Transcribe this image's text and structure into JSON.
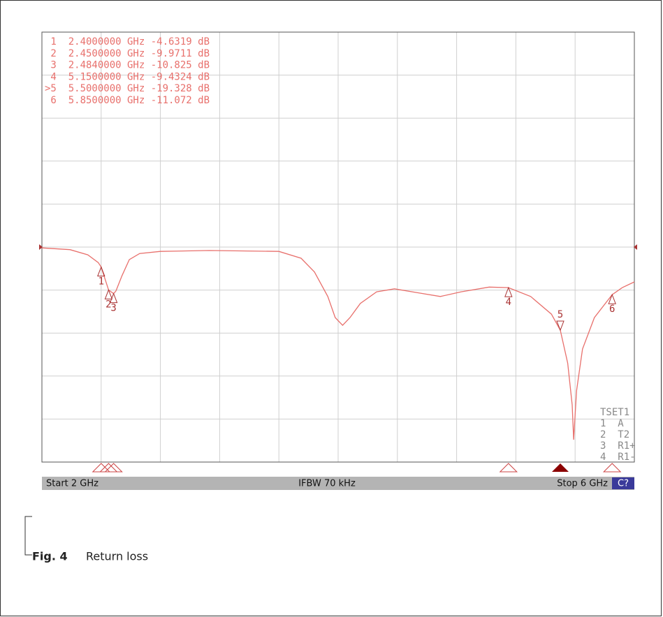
{
  "chart_data": {
    "type": "line",
    "x": [
      2.0,
      2.19,
      2.31,
      2.38,
      2.4,
      2.45,
      2.484,
      2.5,
      2.54,
      2.59,
      2.66,
      2.8,
      3.13,
      3.6,
      3.75,
      3.84,
      3.93,
      3.98,
      4.03,
      4.08,
      4.15,
      4.26,
      4.38,
      4.55,
      4.69,
      4.83,
      5.02,
      5.15,
      5.3,
      5.44,
      5.5,
      5.55,
      5.58,
      5.59,
      5.61,
      5.65,
      5.73,
      5.85,
      5.92,
      6.0
    ],
    "series": [
      {
        "color": "#e8706c",
        "values": [
          -0.2,
          -0.6,
          -1.8,
          -3.6,
          -4.6319,
          -9.9711,
          -10.825,
          -10.2,
          -6.7,
          -2.9,
          -1.5,
          -1.0,
          -0.8,
          -1.0,
          -2.6,
          -5.8,
          -11.5,
          -16.4,
          -18.2,
          -16.4,
          -13.1,
          -10.4,
          -9.7,
          -10.7,
          -11.5,
          -10.4,
          -9.3,
          -9.4324,
          -11.5,
          -15.6,
          -19.328,
          -27.0,
          -36.7,
          -44.8,
          -33.4,
          -23.7,
          -16.4,
          -11.072,
          -9.4,
          -8.1
        ]
      }
    ],
    "xlim": [
      2,
      6
    ],
    "ylim": [
      -50,
      50
    ],
    "xticks": [
      2,
      2.4,
      2.8,
      3.2,
      3.6,
      4,
      4.4,
      4.8,
      5.2,
      5.6,
      6
    ],
    "yticks": [
      -50,
      -40,
      -30,
      -20,
      -10,
      0,
      10,
      20,
      30,
      40,
      50
    ],
    "grid": true,
    "reference_value": 0,
    "markers": [
      {
        "label": "1",
        "x": 2.4,
        "value": -4.6319,
        "readout": " 1  2.4000000 GHz -4.6319 dB"
      },
      {
        "label": "2",
        "x": 2.45,
        "value": -9.9711,
        "readout": " 2  2.4500000 GHz -9.9711 dB"
      },
      {
        "label": "3",
        "x": 2.484,
        "value": -10.825,
        "readout": " 3  2.4840000 GHz -10.825 dB"
      },
      {
        "label": "4",
        "x": 5.15,
        "value": -9.4324,
        "readout": " 4  5.1500000 GHz -9.4324 dB"
      },
      {
        "label": "5",
        "x": 5.5,
        "value": -19.328,
        "readout": ">5  5.5000000 GHz -19.328 dB"
      },
      {
        "label": "6",
        "x": 5.85,
        "value": -11.072,
        "readout": " 6  5.8500000 GHz -11.072 dB"
      }
    ],
    "active_marker": 4,
    "status": {
      "start": "Start 2 GHz",
      "ifbw": "IFBW 70 kHz",
      "stop": "Stop 6 GHz",
      "channel": "C?"
    },
    "trace_panel": [
      "TSET1",
      "1  A",
      "2  T2",
      "3  R1+",
      "4  R1-"
    ]
  },
  "caption": {
    "label": "Fig. 4",
    "text": "Return loss"
  }
}
